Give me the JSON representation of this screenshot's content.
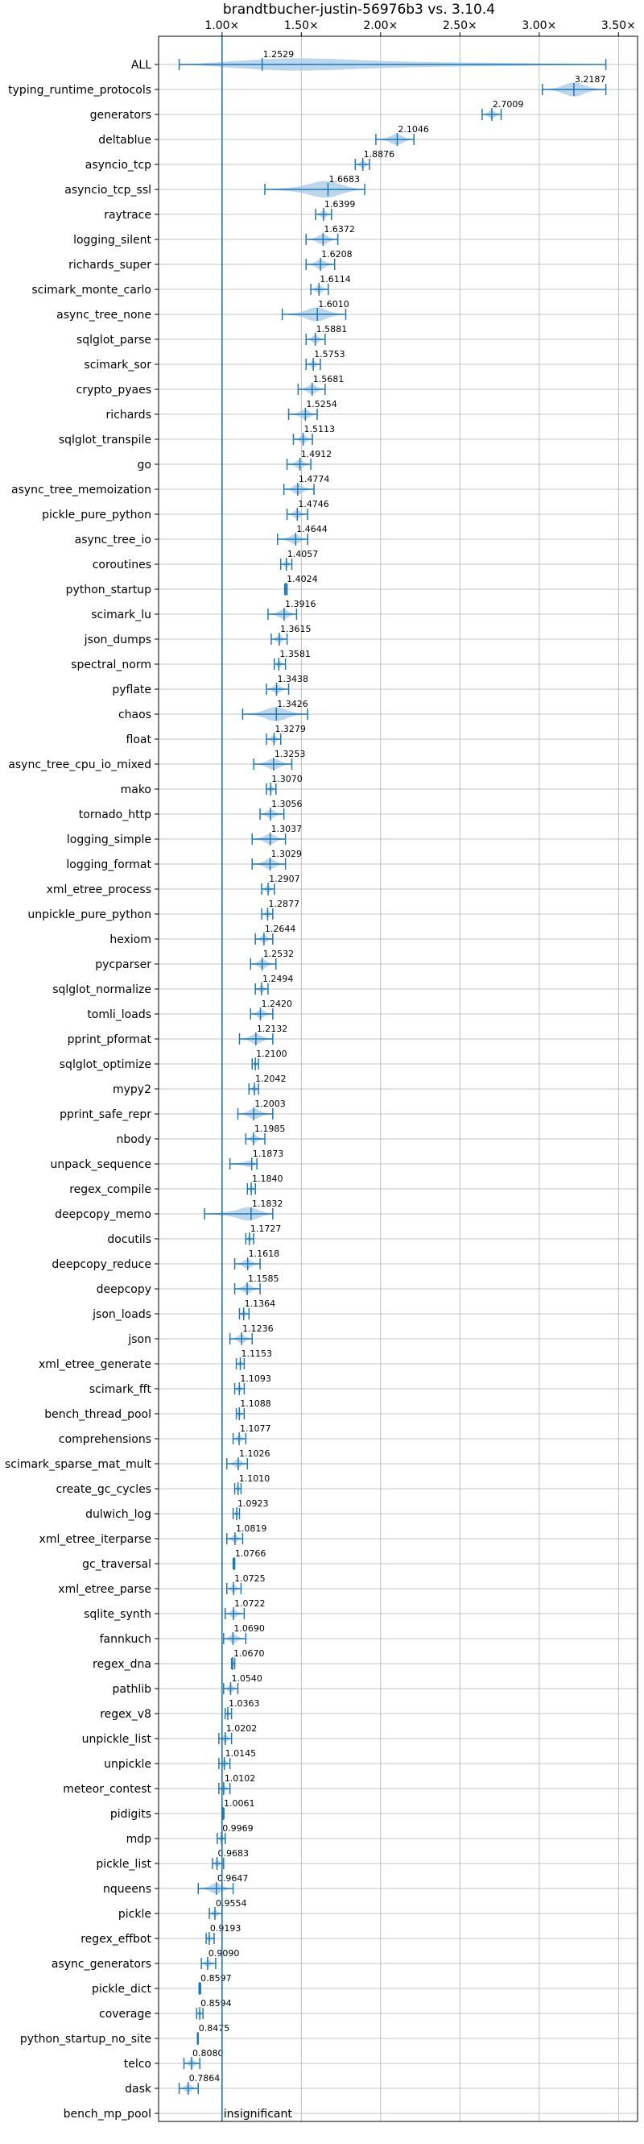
{
  "chart_data": {
    "type": "violin",
    "title": "brandtbucher-justin-56976b3 vs. 3.10.4",
    "xlabel": "",
    "ylabel": "",
    "xlim": [
      0.6,
      3.62
    ],
    "x_ticks": [
      1.0,
      1.5,
      2.0,
      2.5,
      3.0,
      3.5
    ],
    "x_tick_labels": [
      "1.00×",
      "1.50×",
      "2.00×",
      "2.50×",
      "3.00×",
      "3.50×"
    ],
    "reference_line": 1.0,
    "grid": true,
    "ticks_on_top": true,
    "colors": {
      "violin": "#1f77b4",
      "violin_fill": "#a6c8e6",
      "reference": "#1f77b4"
    },
    "benchmarks": [
      {
        "name": "ALL",
        "value": "1.2529",
        "mean": 1.2529,
        "min": 0.73,
        "max": 3.42
      },
      {
        "name": "typing_runtime_protocols",
        "value": "3.2187",
        "mean": 3.2187,
        "min": 3.02,
        "max": 3.42
      },
      {
        "name": "generators",
        "value": "2.7009",
        "mean": 2.7009,
        "min": 2.64,
        "max": 2.76
      },
      {
        "name": "deltablue",
        "value": "2.1046",
        "mean": 2.1046,
        "min": 1.97,
        "max": 2.21
      },
      {
        "name": "asyncio_tcp",
        "value": "1.8876",
        "mean": 1.8876,
        "min": 1.84,
        "max": 1.93
      },
      {
        "name": "asyncio_tcp_ssl",
        "value": "1.6683",
        "mean": 1.6683,
        "min": 1.27,
        "max": 1.9
      },
      {
        "name": "raytrace",
        "value": "1.6399",
        "mean": 1.6399,
        "min": 1.59,
        "max": 1.69
      },
      {
        "name": "logging_silent",
        "value": "1.6372",
        "mean": 1.6372,
        "min": 1.53,
        "max": 1.73
      },
      {
        "name": "richards_super",
        "value": "1.6208",
        "mean": 1.6208,
        "min": 1.53,
        "max": 1.71
      },
      {
        "name": "scimark_monte_carlo",
        "value": "1.6114",
        "mean": 1.6114,
        "min": 1.56,
        "max": 1.67
      },
      {
        "name": "async_tree_none",
        "value": "1.6010",
        "mean": 1.601,
        "min": 1.38,
        "max": 1.78
      },
      {
        "name": "sqlglot_parse",
        "value": "1.5881",
        "mean": 1.5881,
        "min": 1.53,
        "max": 1.65
      },
      {
        "name": "scimark_sor",
        "value": "1.5753",
        "mean": 1.5753,
        "min": 1.53,
        "max": 1.62
      },
      {
        "name": "crypto_pyaes",
        "value": "1.5681",
        "mean": 1.5681,
        "min": 1.48,
        "max": 1.65
      },
      {
        "name": "richards",
        "value": "1.5254",
        "mean": 1.5254,
        "min": 1.42,
        "max": 1.6
      },
      {
        "name": "sqlglot_transpile",
        "value": "1.5113",
        "mean": 1.5113,
        "min": 1.45,
        "max": 1.57
      },
      {
        "name": "go",
        "value": "1.4912",
        "mean": 1.4912,
        "min": 1.41,
        "max": 1.56
      },
      {
        "name": "async_tree_memoization",
        "value": "1.4774",
        "mean": 1.4774,
        "min": 1.39,
        "max": 1.58
      },
      {
        "name": "pickle_pure_python",
        "value": "1.4746",
        "mean": 1.4746,
        "min": 1.41,
        "max": 1.54
      },
      {
        "name": "async_tree_io",
        "value": "1.4644",
        "mean": 1.4644,
        "min": 1.35,
        "max": 1.54
      },
      {
        "name": "coroutines",
        "value": "1.4057",
        "mean": 1.4057,
        "min": 1.37,
        "max": 1.44
      },
      {
        "name": "python_startup",
        "value": "1.4024",
        "mean": 1.4024,
        "min": 1.395,
        "max": 1.41
      },
      {
        "name": "scimark_lu",
        "value": "1.3916",
        "mean": 1.3916,
        "min": 1.29,
        "max": 1.47
      },
      {
        "name": "json_dumps",
        "value": "1.3615",
        "mean": 1.3615,
        "min": 1.31,
        "max": 1.41
      },
      {
        "name": "spectral_norm",
        "value": "1.3581",
        "mean": 1.3581,
        "min": 1.33,
        "max": 1.4
      },
      {
        "name": "pyflate",
        "value": "1.3438",
        "mean": 1.3438,
        "min": 1.28,
        "max": 1.42
      },
      {
        "name": "chaos",
        "value": "1.3426",
        "mean": 1.3426,
        "min": 1.13,
        "max": 1.54
      },
      {
        "name": "float",
        "value": "1.3279",
        "mean": 1.3279,
        "min": 1.28,
        "max": 1.37
      },
      {
        "name": "async_tree_cpu_io_mixed",
        "value": "1.3253",
        "mean": 1.3253,
        "min": 1.2,
        "max": 1.44
      },
      {
        "name": "mako",
        "value": "1.3070",
        "mean": 1.307,
        "min": 1.28,
        "max": 1.34
      },
      {
        "name": "tornado_http",
        "value": "1.3056",
        "mean": 1.3056,
        "min": 1.24,
        "max": 1.39
      },
      {
        "name": "logging_simple",
        "value": "1.3037",
        "mean": 1.3037,
        "min": 1.19,
        "max": 1.4
      },
      {
        "name": "logging_format",
        "value": "1.3029",
        "mean": 1.3029,
        "min": 1.19,
        "max": 1.4
      },
      {
        "name": "xml_etree_process",
        "value": "1.2907",
        "mean": 1.2907,
        "min": 1.25,
        "max": 1.33
      },
      {
        "name": "unpickle_pure_python",
        "value": "1.2877",
        "mean": 1.2877,
        "min": 1.25,
        "max": 1.32
      },
      {
        "name": "hexiom",
        "value": "1.2644",
        "mean": 1.2644,
        "min": 1.21,
        "max": 1.32
      },
      {
        "name": "pycparser",
        "value": "1.2532",
        "mean": 1.2532,
        "min": 1.18,
        "max": 1.34
      },
      {
        "name": "sqlglot_normalize",
        "value": "1.2494",
        "mean": 1.2494,
        "min": 1.21,
        "max": 1.29
      },
      {
        "name": "tomli_loads",
        "value": "1.2420",
        "mean": 1.242,
        "min": 1.18,
        "max": 1.32
      },
      {
        "name": "pprint_pformat",
        "value": "1.2132",
        "mean": 1.2132,
        "min": 1.11,
        "max": 1.32
      },
      {
        "name": "sqlglot_optimize",
        "value": "1.2100",
        "mean": 1.21,
        "min": 1.19,
        "max": 1.23
      },
      {
        "name": "mypy2",
        "value": "1.2042",
        "mean": 1.2042,
        "min": 1.17,
        "max": 1.23
      },
      {
        "name": "pprint_safe_repr",
        "value": "1.2003",
        "mean": 1.2003,
        "min": 1.1,
        "max": 1.32
      },
      {
        "name": "nbody",
        "value": "1.1985",
        "mean": 1.1985,
        "min": 1.15,
        "max": 1.27
      },
      {
        "name": "unpack_sequence",
        "value": "1.1873",
        "mean": 1.1873,
        "min": 1.05,
        "max": 1.22
      },
      {
        "name": "regex_compile",
        "value": "1.1840",
        "mean": 1.184,
        "min": 1.16,
        "max": 1.21
      },
      {
        "name": "deepcopy_memo",
        "value": "1.1832",
        "mean": 1.1832,
        "min": 0.89,
        "max": 1.32
      },
      {
        "name": "docutils",
        "value": "1.1727",
        "mean": 1.1727,
        "min": 1.15,
        "max": 1.2
      },
      {
        "name": "deepcopy_reduce",
        "value": "1.1618",
        "mean": 1.1618,
        "min": 1.08,
        "max": 1.24
      },
      {
        "name": "deepcopy",
        "value": "1.1585",
        "mean": 1.1585,
        "min": 1.08,
        "max": 1.24
      },
      {
        "name": "json_loads",
        "value": "1.1364",
        "mean": 1.1364,
        "min": 1.11,
        "max": 1.17
      },
      {
        "name": "json",
        "value": "1.1236",
        "mean": 1.1236,
        "min": 1.05,
        "max": 1.19
      },
      {
        "name": "xml_etree_generate",
        "value": "1.1153",
        "mean": 1.1153,
        "min": 1.09,
        "max": 1.14
      },
      {
        "name": "scimark_fft",
        "value": "1.1093",
        "mean": 1.1093,
        "min": 1.08,
        "max": 1.14
      },
      {
        "name": "bench_thread_pool",
        "value": "1.1088",
        "mean": 1.1088,
        "min": 1.09,
        "max": 1.14
      },
      {
        "name": "comprehensions",
        "value": "1.1077",
        "mean": 1.1077,
        "min": 1.07,
        "max": 1.15
      },
      {
        "name": "scimark_sparse_mat_mult",
        "value": "1.1026",
        "mean": 1.1026,
        "min": 1.03,
        "max": 1.16
      },
      {
        "name": "create_gc_cycles",
        "value": "1.1010",
        "mean": 1.101,
        "min": 1.08,
        "max": 1.12
      },
      {
        "name": "dulwich_log",
        "value": "1.0923",
        "mean": 1.0923,
        "min": 1.07,
        "max": 1.11
      },
      {
        "name": "xml_etree_iterparse",
        "value": "1.0819",
        "mean": 1.0819,
        "min": 1.03,
        "max": 1.13
      },
      {
        "name": "gc_traversal",
        "value": "1.0766",
        "mean": 1.0766,
        "min": 1.07,
        "max": 1.08
      },
      {
        "name": "xml_etree_parse",
        "value": "1.0725",
        "mean": 1.0725,
        "min": 1.03,
        "max": 1.12
      },
      {
        "name": "sqlite_synth",
        "value": "1.0722",
        "mean": 1.0722,
        "min": 1.02,
        "max": 1.14
      },
      {
        "name": "fannkuch",
        "value": "1.0690",
        "mean": 1.069,
        "min": 1.01,
        "max": 1.15
      },
      {
        "name": "regex_dna",
        "value": "1.0670",
        "mean": 1.067,
        "min": 1.06,
        "max": 1.08
      },
      {
        "name": "pathlib",
        "value": "1.0540",
        "mean": 1.054,
        "min": 1.01,
        "max": 1.1
      },
      {
        "name": "regex_v8",
        "value": "1.0363",
        "mean": 1.0363,
        "min": 1.02,
        "max": 1.06
      },
      {
        "name": "unpickle_list",
        "value": "1.0202",
        "mean": 1.0202,
        "min": 0.98,
        "max": 1.06
      },
      {
        "name": "unpickle",
        "value": "1.0145",
        "mean": 1.0145,
        "min": 0.98,
        "max": 1.05
      },
      {
        "name": "meteor_contest",
        "value": "1.0102",
        "mean": 1.0102,
        "min": 0.98,
        "max": 1.05
      },
      {
        "name": "pidigits",
        "value": "1.0061",
        "mean": 1.0061,
        "min": 1.0,
        "max": 1.012
      },
      {
        "name": "mdp",
        "value": "0.9969",
        "mean": 0.9969,
        "min": 0.97,
        "max": 1.02
      },
      {
        "name": "pickle_list",
        "value": "0.9683",
        "mean": 0.9683,
        "min": 0.94,
        "max": 1.01
      },
      {
        "name": "nqueens",
        "value": "0.9647",
        "mean": 0.9647,
        "min": 0.85,
        "max": 1.07
      },
      {
        "name": "pickle",
        "value": "0.9554",
        "mean": 0.9554,
        "min": 0.92,
        "max": 1.0
      },
      {
        "name": "regex_effbot",
        "value": "0.9193",
        "mean": 0.9193,
        "min": 0.9,
        "max": 0.95
      },
      {
        "name": "async_generators",
        "value": "0.9090",
        "mean": 0.909,
        "min": 0.87,
        "max": 0.96
      },
      {
        "name": "pickle_dict",
        "value": "0.8597",
        "mean": 0.8597,
        "min": 0.855,
        "max": 0.865
      },
      {
        "name": "coverage",
        "value": "0.8594",
        "mean": 0.8594,
        "min": 0.84,
        "max": 0.88
      },
      {
        "name": "python_startup_no_site",
        "value": "0.8475",
        "mean": 0.8475,
        "min": 0.845,
        "max": 0.85
      },
      {
        "name": "telco",
        "value": "0.8080",
        "mean": 0.808,
        "min": 0.76,
        "max": 0.86
      },
      {
        "name": "dask",
        "value": "0.7864",
        "mean": 0.7864,
        "min": 0.73,
        "max": 0.85
      },
      {
        "name": "bench_mp_pool",
        "value": "insignificant",
        "mean": null,
        "min": null,
        "max": null
      }
    ]
  }
}
